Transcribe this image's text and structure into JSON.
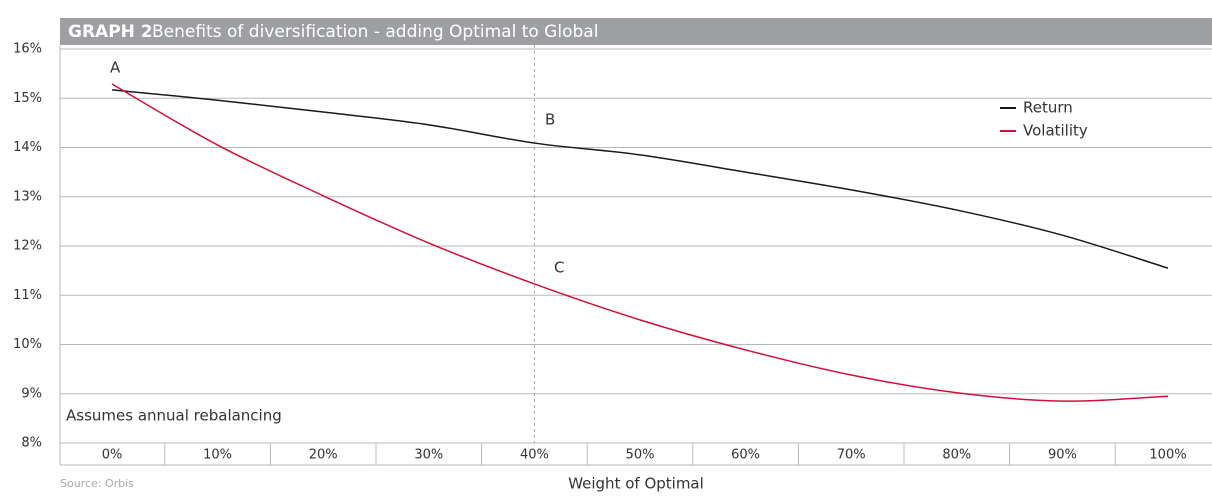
{
  "chart_data": {
    "type": "line",
    "title_label": "GRAPH 2",
    "title": "Benefits of diversification - adding Optimal to Global",
    "x_label": "Weight of Optimal",
    "note": "Assumes annual rebalancing",
    "source": "Source: Orbis",
    "annotations": [
      "A",
      "B",
      "C"
    ],
    "highlight_category": "40%",
    "categories": [
      "0%",
      "10%",
      "20%",
      "30%",
      "40%",
      "50%",
      "60%",
      "70%",
      "80%",
      "90%",
      "100%"
    ],
    "series": [
      {
        "name": "Return",
        "color": "#1a1a1a",
        "values": [
          15.17,
          14.96,
          14.72,
          14.46,
          14.09,
          13.85,
          13.5,
          13.14,
          12.73,
          12.22,
          11.55
        ]
      },
      {
        "name": "Volatility",
        "color": "#d0103a",
        "values": [
          15.29,
          14.05,
          13.02,
          12.06,
          11.23,
          10.5,
          9.89,
          9.38,
          9.02,
          8.85,
          8.95
        ]
      }
    ],
    "ylim": [
      8,
      16
    ],
    "yticks": [
      {
        "value": 8,
        "label": "8%"
      },
      {
        "value": 9,
        "label": "9%"
      },
      {
        "value": 10,
        "label": "10%"
      },
      {
        "value": 11,
        "label": "11%"
      },
      {
        "value": 12,
        "label": "12%"
      },
      {
        "value": 13,
        "label": "13%"
      },
      {
        "value": 14,
        "label": "14%"
      },
      {
        "value": 15,
        "label": "15%"
      },
      {
        "value": 16,
        "label": "16%"
      }
    ],
    "grid": true,
    "legend_position": "upper right"
  }
}
